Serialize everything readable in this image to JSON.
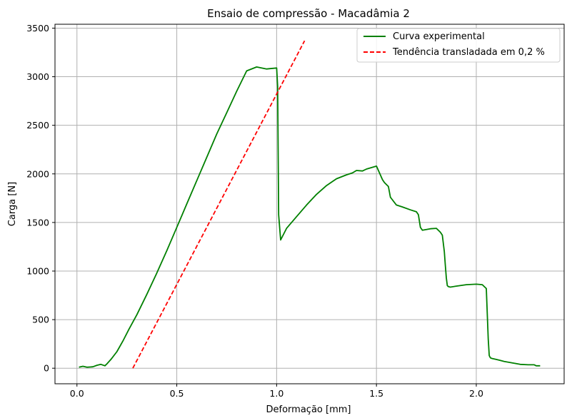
{
  "chart_data": {
    "type": "line",
    "title": "Ensaio de compressão - Macadâmia 2",
    "xlabel": "Deformação [mm]",
    "ylabel": "Carga [N]",
    "xlim": [
      -0.11,
      2.44
    ],
    "ylim": [
      -160,
      3540
    ],
    "xticks": [
      0.0,
      0.5,
      1.0,
      1.5,
      2.0
    ],
    "xtick_labels": [
      "0.0",
      "0.5",
      "1.0",
      "1.5",
      "2.0"
    ],
    "yticks": [
      0,
      500,
      1000,
      1500,
      2000,
      2500,
      3000,
      3500
    ],
    "ytick_labels": [
      "0",
      "500",
      "1000",
      "1500",
      "2000",
      "2500",
      "3000",
      "3500"
    ],
    "grid": true,
    "legend_position": "top-right",
    "series": [
      {
        "name": "Curva experimental",
        "color": "#008000",
        "style": "solid",
        "x": [
          0.01,
          0.03,
          0.05,
          0.08,
          0.1,
          0.12,
          0.14,
          0.15,
          0.17,
          0.2,
          0.23,
          0.26,
          0.3,
          0.35,
          0.4,
          0.45,
          0.5,
          0.55,
          0.6,
          0.65,
          0.7,
          0.75,
          0.8,
          0.85,
          0.9,
          0.95,
          1.0,
          1.005,
          1.01,
          1.02,
          1.05,
          1.1,
          1.15,
          1.2,
          1.25,
          1.3,
          1.35,
          1.38,
          1.4,
          1.43,
          1.45,
          1.5,
          1.53,
          1.54,
          1.56,
          1.57,
          1.6,
          1.63,
          1.67,
          1.7,
          1.71,
          1.72,
          1.73,
          1.77,
          1.8,
          1.82,
          1.83,
          1.84,
          1.845,
          1.85,
          1.855,
          1.86,
          1.87,
          1.9,
          1.95,
          2.0,
          2.03,
          2.05,
          2.06,
          2.065,
          2.07,
          2.072,
          2.08,
          2.1,
          2.12,
          2.14,
          2.18,
          2.22,
          2.26,
          2.29,
          2.3,
          2.32
        ],
        "y": [
          10,
          20,
          10,
          15,
          30,
          40,
          25,
          45,
          90,
          170,
          280,
          400,
          550,
          760,
          980,
          1210,
          1450,
          1690,
          1930,
          2170,
          2410,
          2630,
          2850,
          3060,
          3100,
          3080,
          3090,
          2900,
          1580,
          1320,
          1440,
          1560,
          1680,
          1790,
          1880,
          1950,
          1990,
          2010,
          2035,
          2030,
          2050,
          2080,
          1940,
          1910,
          1870,
          1760,
          1680,
          1660,
          1630,
          1610,
          1580,
          1450,
          1420,
          1435,
          1440,
          1400,
          1370,
          1200,
          1060,
          930,
          850,
          840,
          835,
          845,
          860,
          865,
          860,
          820,
          300,
          130,
          110,
          105,
          100,
          90,
          80,
          70,
          55,
          40,
          35,
          35,
          25,
          25
        ]
      },
      {
        "name": "Tendência transladada em 0,2 %",
        "color": "#ff0000",
        "style": "dashed",
        "x": [
          0.28,
          1.14
        ],
        "y": [
          0,
          3370
        ]
      }
    ]
  }
}
